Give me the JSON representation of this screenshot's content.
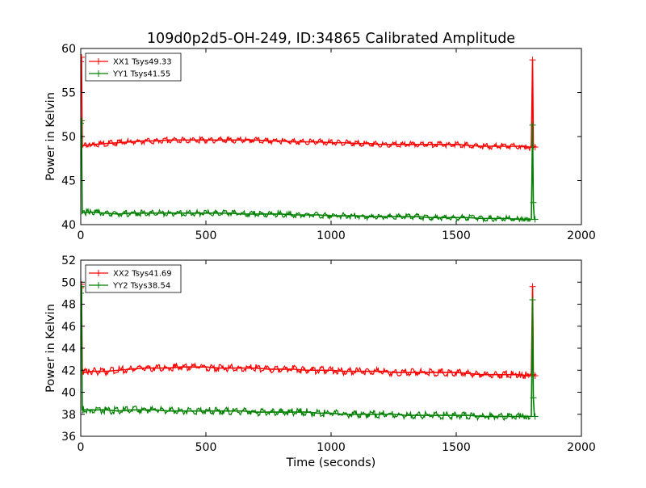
{
  "figure": {
    "title": "109d0p2d5-OH-249, ID:34865 Calibrated Amplitude",
    "xlabel": "Time (seconds)"
  },
  "colors": {
    "red": "#ff0000",
    "green": "#008000"
  },
  "chart_data": [
    {
      "type": "line",
      "title": "109d0p2d5-OH-249, ID:34865 Calibrated Amplitude",
      "xlabel": "",
      "ylabel": "Power in Kelvin",
      "xlim": [
        0,
        2000
      ],
      "ylim": [
        40,
        60
      ],
      "xticks": [
        "0",
        "500",
        "1000",
        "1500",
        "2000"
      ],
      "yticks": [
        "40",
        "45",
        "50",
        "55",
        "60"
      ],
      "grid": false,
      "legend_position": "top-left",
      "series": [
        {
          "name": "XX1 Tsys49.33",
          "color": "#ff0000",
          "x": [
            0,
            3,
            6,
            10,
            20,
            50,
            100,
            150,
            200,
            250,
            300,
            350,
            400,
            450,
            500,
            550,
            600,
            650,
            700,
            750,
            800,
            850,
            900,
            950,
            1000,
            1050,
            1100,
            1150,
            1200,
            1250,
            1300,
            1350,
            1400,
            1450,
            1500,
            1550,
            1600,
            1650,
            1700,
            1750,
            1790,
            1800,
            1805,
            1808,
            1812,
            1815
          ],
          "y": [
            58.5,
            59.0,
            49.0,
            49.0,
            49.0,
            49.1,
            49.2,
            49.3,
            49.4,
            49.5,
            49.5,
            49.6,
            49.6,
            49.6,
            49.6,
            49.6,
            49.6,
            49.6,
            49.6,
            49.5,
            49.5,
            49.4,
            49.4,
            49.4,
            49.3,
            49.3,
            49.2,
            49.2,
            49.1,
            49.1,
            49.1,
            49.1,
            49.1,
            49.1,
            49.1,
            49.0,
            48.9,
            48.9,
            48.9,
            48.9,
            48.8,
            48.8,
            58.7,
            48.9,
            48.8,
            48.8
          ]
        },
        {
          "name": "YY1 Tsys41.55",
          "color": "#008000",
          "x": [
            0,
            3,
            6,
            10,
            20,
            50,
            100,
            150,
            200,
            250,
            300,
            350,
            400,
            450,
            500,
            550,
            600,
            650,
            700,
            750,
            800,
            850,
            900,
            950,
            1000,
            1050,
            1100,
            1150,
            1200,
            1250,
            1300,
            1350,
            1400,
            1450,
            1500,
            1550,
            1600,
            1650,
            1700,
            1750,
            1790,
            1800,
            1805,
            1808,
            1812,
            1815
          ],
          "y": [
            51.5,
            51.8,
            41.3,
            41.4,
            41.4,
            41.4,
            41.3,
            41.2,
            41.3,
            41.3,
            41.3,
            41.3,
            41.3,
            41.3,
            41.3,
            41.3,
            41.3,
            41.2,
            41.2,
            41.2,
            41.2,
            41.1,
            41.1,
            41.1,
            41.0,
            41.0,
            41.0,
            40.9,
            40.9,
            40.9,
            40.9,
            40.9,
            40.8,
            40.8,
            40.8,
            40.8,
            40.7,
            40.7,
            40.7,
            40.6,
            40.6,
            40.6,
            51.3,
            42.5,
            40.6,
            40.6
          ]
        }
      ]
    },
    {
      "type": "line",
      "title": "",
      "xlabel": "Time (seconds)",
      "ylabel": "Power in Kelvin",
      "xlim": [
        0,
        2000
      ],
      "ylim": [
        36,
        52
      ],
      "xticks": [
        "0",
        "500",
        "1000",
        "1500",
        "2000"
      ],
      "yticks": [
        "36",
        "38",
        "40",
        "42",
        "44",
        "46",
        "48",
        "50",
        "52"
      ],
      "grid": false,
      "legend_position": "top-left",
      "series": [
        {
          "name": "XX2 Tsys41.69",
          "color": "#ff0000",
          "x": [
            0,
            3,
            6,
            10,
            20,
            50,
            100,
            150,
            200,
            250,
            300,
            350,
            400,
            450,
            500,
            550,
            600,
            650,
            700,
            750,
            800,
            850,
            900,
            950,
            1000,
            1050,
            1100,
            1150,
            1200,
            1250,
            1300,
            1350,
            1400,
            1450,
            1500,
            1550,
            1600,
            1650,
            1700,
            1750,
            1790,
            1800,
            1805,
            1808,
            1812,
            1815
          ],
          "y": [
            49.5,
            49.8,
            41.8,
            41.8,
            41.8,
            41.9,
            41.9,
            42.0,
            42.1,
            42.2,
            42.2,
            42.2,
            42.3,
            42.3,
            42.3,
            42.2,
            42.2,
            42.2,
            42.2,
            42.1,
            42.1,
            42.1,
            42.0,
            42.0,
            42.0,
            41.9,
            41.9,
            41.9,
            41.9,
            41.8,
            41.8,
            41.8,
            41.8,
            41.8,
            41.8,
            41.7,
            41.6,
            41.6,
            41.6,
            41.6,
            41.5,
            41.5,
            49.6,
            41.6,
            41.5,
            41.5
          ]
        },
        {
          "name": "YY2 Tsys38.54",
          "color": "#008000",
          "x": [
            0,
            3,
            6,
            10,
            20,
            50,
            100,
            150,
            200,
            250,
            300,
            350,
            400,
            450,
            500,
            550,
            600,
            650,
            700,
            750,
            800,
            850,
            900,
            950,
            1000,
            1050,
            1100,
            1150,
            1200,
            1250,
            1300,
            1350,
            1400,
            1450,
            1500,
            1550,
            1600,
            1650,
            1700,
            1750,
            1790,
            1800,
            1805,
            1808,
            1812,
            1815
          ],
          "y": [
            49.0,
            49.6,
            38.4,
            38.4,
            38.4,
            38.4,
            38.4,
            38.3,
            38.4,
            38.4,
            38.4,
            38.3,
            38.3,
            38.3,
            38.3,
            38.3,
            38.3,
            38.3,
            38.2,
            38.2,
            38.2,
            38.2,
            38.2,
            38.1,
            38.1,
            38.0,
            38.0,
            38.0,
            38.0,
            38.0,
            37.9,
            37.9,
            37.9,
            37.9,
            37.9,
            37.9,
            37.8,
            37.8,
            37.8,
            37.8,
            37.8,
            37.8,
            48.4,
            39.5,
            37.9,
            37.8
          ]
        }
      ]
    }
  ]
}
